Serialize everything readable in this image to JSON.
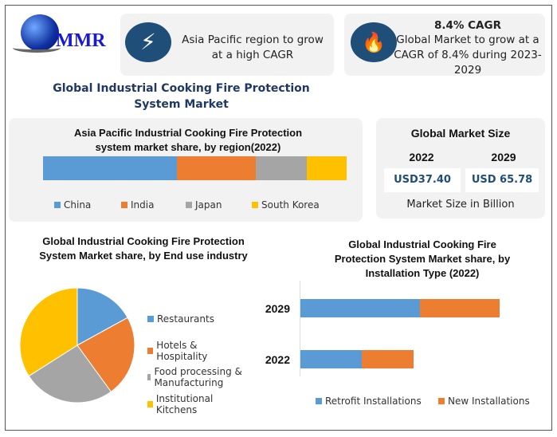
{
  "logo": {
    "text": "MMR"
  },
  "highlight1": {
    "icon": "lightning-icon",
    "text": "Asia Pacific region to grow at a high CAGR"
  },
  "highlight2": {
    "icon": "flame-icon",
    "heading": "8.4% CAGR",
    "text": "Global Market to grow at a CAGR of 8.4% during 2023-2029"
  },
  "main_title": "Global Industrial Cooking Fire Protection System Market",
  "market_size": {
    "title": "Global Market Size",
    "year1": "2022",
    "year2": "2029",
    "value1": "USD37.40",
    "value2": "USD 65.78",
    "unit": "Market Size in Billion"
  },
  "colors": {
    "blue": "#5b9bd5",
    "orange": "#ed7d31",
    "gray": "#a5a5a5",
    "yellow": "#ffc000",
    "navy": "#1f4e79"
  },
  "chart_data": [
    {
      "type": "bar",
      "orientation": "horizontal-stacked-100",
      "title": "Asia Pacific Industrial Cooking Fire Protection system market share, by region(2022)",
      "categories": [
        "2022"
      ],
      "series": [
        {
          "name": "China",
          "values": [
            44
          ]
        },
        {
          "name": "India",
          "values": [
            26
          ]
        },
        {
          "name": "Japan",
          "values": [
            17
          ]
        },
        {
          "name": "South Korea",
          "values": [
            13
          ]
        }
      ],
      "unit": "%",
      "legend": "bottom"
    },
    {
      "type": "pie",
      "title": "Global Industrial Cooking Fire Protection System Market share, by End use industry",
      "labels": [
        "Restaurants",
        "Hotels & Hospitality",
        "Food processing & Manufacturing",
        "Institutional Kitchens"
      ],
      "values": [
        17,
        23,
        26,
        34
      ],
      "unit": "%",
      "legend": "right"
    },
    {
      "type": "bar",
      "orientation": "horizontal-stacked",
      "title": "Global Industrial Cooking Fire Protection System Market share, by Installation Type (2022)",
      "categories": [
        "2029",
        "2022"
      ],
      "series": [
        {
          "name": "Retrofit Installations",
          "values": [
            39.5,
            20.3
          ]
        },
        {
          "name": "New Installations",
          "values": [
            26.3,
            17.1
          ]
        }
      ],
      "legend": "bottom"
    }
  ]
}
